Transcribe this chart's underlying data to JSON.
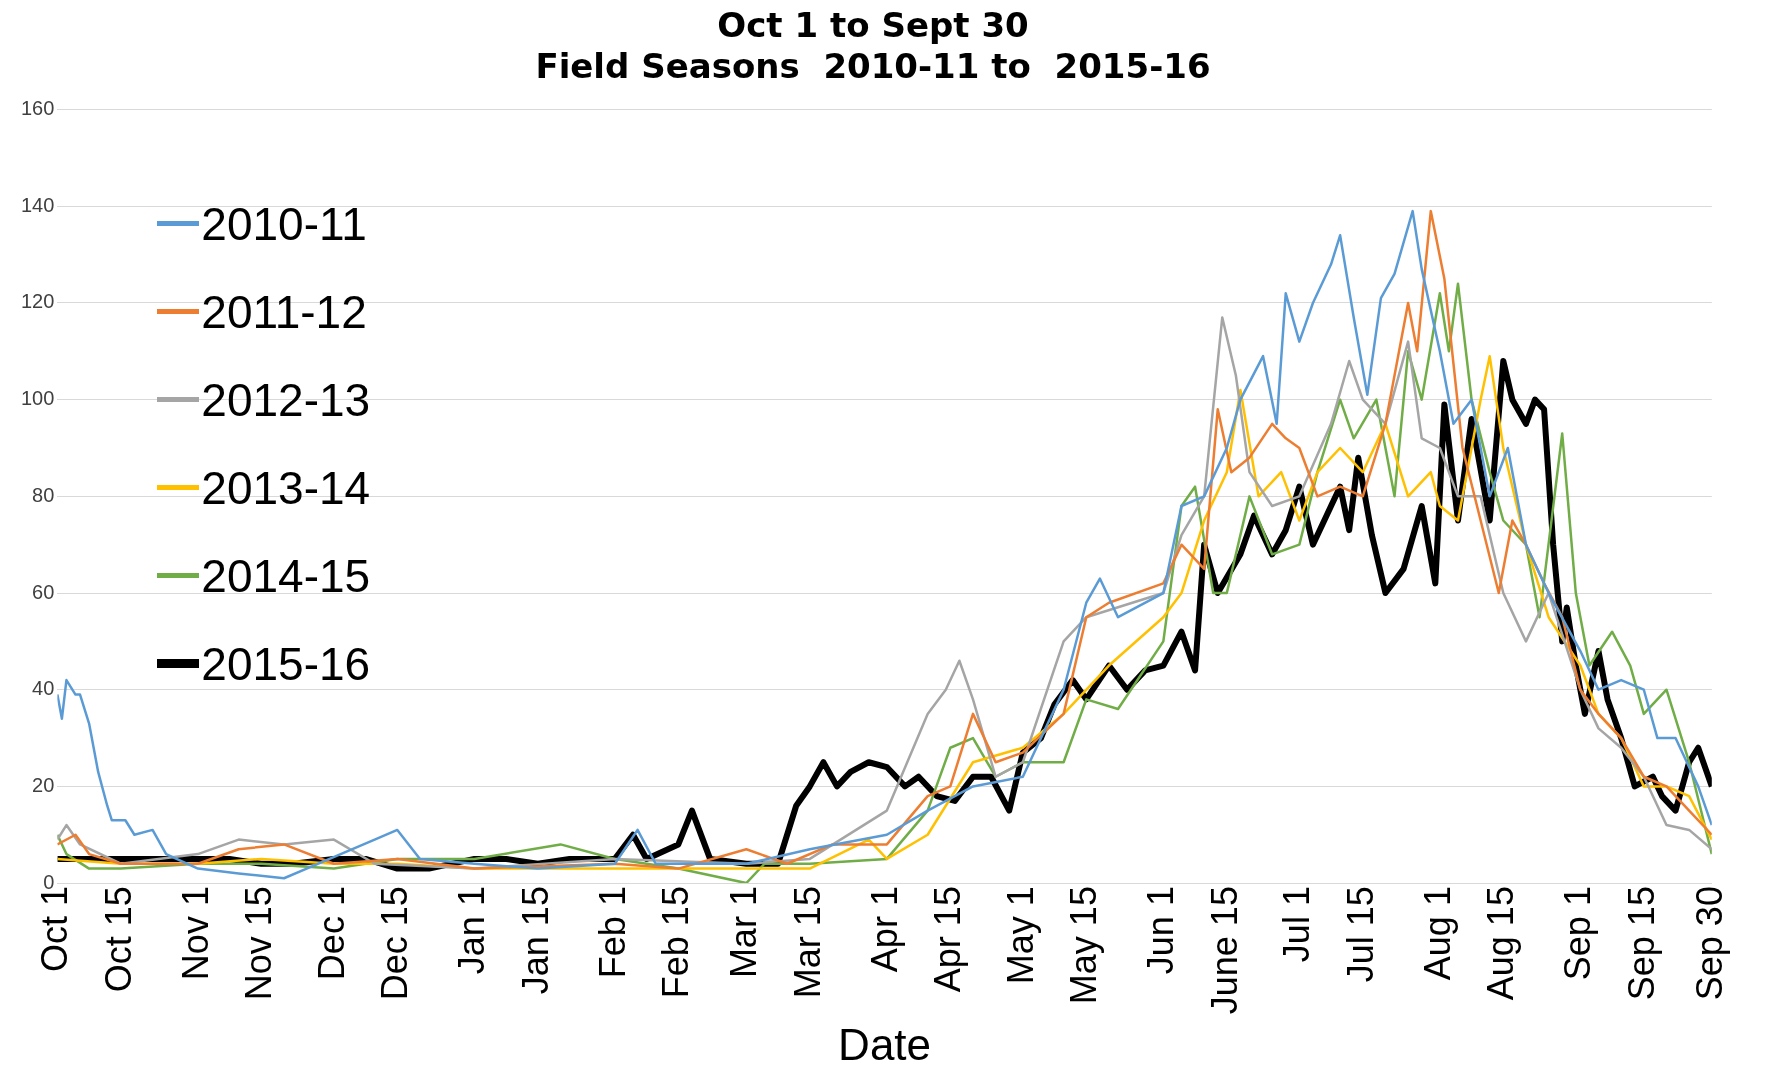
{
  "chart_data": {
    "type": "line",
    "title": "Oct 1 to Sept 30",
    "subtitle": "Field Seasons  2010-11 to  2015-16",
    "xlabel": "Date",
    "xlim": [
      "2015-10-01",
      "2016-09-30"
    ],
    "xticks": [
      {
        "value": "2015-10-01",
        "label": "Oct 1"
      },
      {
        "value": "2015-10-15",
        "label": "Oct 15"
      },
      {
        "value": "2015-11-01",
        "label": "Nov 1"
      },
      {
        "value": "2015-11-15",
        "label": "Nov 15"
      },
      {
        "value": "2015-12-01",
        "label": "Dec 1"
      },
      {
        "value": "2015-12-15",
        "label": "Dec 15"
      },
      {
        "value": "2016-01-01",
        "label": "Jan 1"
      },
      {
        "value": "2016-01-15",
        "label": "Jan 15"
      },
      {
        "value": "2016-02-01",
        "label": "Feb 1"
      },
      {
        "value": "2016-02-15",
        "label": "Feb 15"
      },
      {
        "value": "2016-03-01",
        "label": "Mar 1"
      },
      {
        "value": "2016-03-15",
        "label": "Mar 15"
      },
      {
        "value": "2016-04-01",
        "label": "Apr 1"
      },
      {
        "value": "2016-04-15",
        "label": "Apr 15"
      },
      {
        "value": "2016-05-01",
        "label": "May 1"
      },
      {
        "value": "2016-05-15",
        "label": "May 15"
      },
      {
        "value": "2016-06-01",
        "label": "Jun 1"
      },
      {
        "value": "2016-06-15",
        "label": "June 15"
      },
      {
        "value": "2016-07-01",
        "label": "Jul 1"
      },
      {
        "value": "2016-07-15",
        "label": "Jul 15"
      },
      {
        "value": "2016-08-01",
        "label": "Aug 1"
      },
      {
        "value": "2016-08-15",
        "label": "Aug 15"
      },
      {
        "value": "2016-09-01",
        "label": "Sep 1"
      },
      {
        "value": "2016-09-15",
        "label": "Sep 15"
      },
      {
        "value": "2016-09-30",
        "label": "Sep 30"
      }
    ],
    "ylim": [
      0,
      160
    ],
    "yticks": [
      0,
      20,
      40,
      60,
      80,
      100,
      120,
      140,
      160
    ],
    "grid": "y",
    "legend": "top left",
    "marker": "none",
    "line_style": "solid",
    "series": [
      {
        "name": "2010-11",
        "color": "#5b9bd5",
        "x": [
          "2015-10-01",
          "2015-10-02",
          "2015-10-03",
          "2015-10-05",
          "2015-10-06",
          "2015-10-08",
          "2015-10-10",
          "2015-10-12",
          "2015-10-13",
          "2015-10-16",
          "2015-10-18",
          "2015-10-22",
          "2015-10-25",
          "2015-11-01",
          "2015-11-10",
          "2015-11-20",
          "2015-11-25",
          "2015-12-10",
          "2015-12-15",
          "2015-12-20",
          "2016-01-01",
          "2016-01-15",
          "2016-02-01",
          "2016-02-06",
          "2016-02-10",
          "2016-03-01",
          "2016-03-15",
          "2016-04-01",
          "2016-04-10",
          "2016-04-20",
          "2016-05-01",
          "2016-05-10",
          "2016-05-15",
          "2016-05-18",
          "2016-05-22",
          "2016-06-01",
          "2016-06-05",
          "2016-06-10",
          "2016-06-15",
          "2016-06-18",
          "2016-06-23",
          "2016-06-26",
          "2016-06-28",
          "2016-07-01",
          "2016-07-04",
          "2016-07-08",
          "2016-07-10",
          "2016-07-13",
          "2016-07-16",
          "2016-07-19",
          "2016-07-22",
          "2016-07-26",
          "2016-07-28",
          "2016-08-01",
          "2016-08-04",
          "2016-08-08",
          "2016-08-12",
          "2016-08-16",
          "2016-08-20",
          "2016-08-25",
          "2016-09-01",
          "2016-09-05",
          "2016-09-10",
          "2016-09-15",
          "2016-09-18",
          "2016-09-22",
          "2016-09-27",
          "2016-09-30"
        ],
        "values": [
          39,
          34,
          42,
          39,
          39,
          33,
          23,
          16,
          13,
          13,
          10,
          11,
          6,
          3,
          2,
          1,
          3,
          9,
          11,
          5,
          4,
          3,
          4,
          11,
          4,
          4,
          7,
          10,
          15,
          20,
          22,
          40,
          58,
          63,
          55,
          60,
          78,
          80,
          90,
          100,
          109,
          95,
          122,
          112,
          120,
          128,
          134,
          117,
          101,
          121,
          126,
          139,
          127,
          110,
          95,
          100,
          80,
          90,
          70,
          60,
          48,
          40,
          42,
          40,
          30,
          30,
          20,
          12
        ]
      },
      {
        "name": "2011-12",
        "color": "#ed7d31",
        "x": [
          "2015-10-01",
          "2015-10-05",
          "2015-10-08",
          "2015-10-15",
          "2015-11-01",
          "2015-11-10",
          "2015-11-20",
          "2015-12-01",
          "2015-12-15",
          "2016-01-01",
          "2016-02-01",
          "2016-02-15",
          "2016-03-01",
          "2016-03-10",
          "2016-03-20",
          "2016-04-01",
          "2016-04-10",
          "2016-04-15",
          "2016-04-20",
          "2016-04-25",
          "2016-05-01",
          "2016-05-10",
          "2016-05-15",
          "2016-05-20",
          "2016-06-01",
          "2016-06-05",
          "2016-06-10",
          "2016-06-13",
          "2016-06-16",
          "2016-06-20",
          "2016-06-25",
          "2016-06-28",
          "2016-07-01",
          "2016-07-05",
          "2016-07-10",
          "2016-07-15",
          "2016-07-20",
          "2016-07-25",
          "2016-07-27",
          "2016-07-30",
          "2016-08-02",
          "2016-08-06",
          "2016-08-10",
          "2016-08-14",
          "2016-08-17",
          "2016-08-20",
          "2016-08-24",
          "2016-08-28",
          "2016-09-01",
          "2016-09-05",
          "2016-09-10",
          "2016-09-15",
          "2016-09-20",
          "2016-09-25",
          "2016-09-30"
        ],
        "values": [
          8,
          10,
          6,
          4,
          4,
          7,
          8,
          4,
          5,
          3,
          4,
          3,
          7,
          4,
          8,
          8,
          18,
          20,
          35,
          25,
          27,
          35,
          55,
          58,
          62,
          70,
          65,
          98,
          85,
          88,
          95,
          92,
          90,
          80,
          82,
          80,
          95,
          120,
          110,
          139,
          125,
          90,
          75,
          60,
          75,
          70,
          62,
          55,
          40,
          35,
          30,
          22,
          20,
          15,
          10
        ]
      },
      {
        "name": "2012-13",
        "color": "#a5a5a5",
        "x": [
          "2015-10-01",
          "2015-10-03",
          "2015-10-06",
          "2015-10-15",
          "2015-11-01",
          "2015-11-10",
          "2015-11-20",
          "2015-12-01",
          "2015-12-10",
          "2016-01-01",
          "2016-02-01",
          "2016-03-01",
          "2016-03-15",
          "2016-04-01",
          "2016-04-10",
          "2016-04-14",
          "2016-04-17",
          "2016-04-20",
          "2016-04-25",
          "2016-05-01",
          "2016-05-10",
          "2016-05-15",
          "2016-06-01",
          "2016-06-05",
          "2016-06-10",
          "2016-06-14",
          "2016-06-17",
          "2016-06-20",
          "2016-06-25",
          "2016-07-01",
          "2016-07-08",
          "2016-07-12",
          "2016-07-15",
          "2016-07-20",
          "2016-07-25",
          "2016-07-28",
          "2016-08-01",
          "2016-08-05",
          "2016-08-10",
          "2016-08-15",
          "2016-08-20",
          "2016-08-25",
          "2016-09-01",
          "2016-09-05",
          "2016-09-10",
          "2016-09-15",
          "2016-09-20",
          "2016-09-25",
          "2016-09-30"
        ],
        "values": [
          9,
          12,
          8,
          4,
          6,
          9,
          8,
          9,
          4,
          3,
          5,
          4,
          5,
          15,
          35,
          40,
          46,
          38,
          22,
          25,
          50,
          55,
          60,
          72,
          80,
          117,
          105,
          85,
          78,
          80,
          95,
          108,
          100,
          95,
          112,
          92,
          90,
          80,
          80,
          60,
          50,
          60,
          40,
          32,
          28,
          22,
          12,
          11,
          7
        ]
      },
      {
        "name": "2013-14",
        "color": "#ffc000",
        "x": [
          "2015-10-01",
          "2015-10-15",
          "2015-11-01",
          "2015-11-15",
          "2015-12-01",
          "2015-12-15",
          "2016-01-01",
          "2016-02-01",
          "2016-03-01",
          "2016-03-15",
          "2016-03-28",
          "2016-04-01",
          "2016-04-10",
          "2016-04-20",
          "2016-05-01",
          "2016-05-10",
          "2016-05-20",
          "2016-06-01",
          "2016-06-05",
          "2016-06-10",
          "2016-06-15",
          "2016-06-18",
          "2016-06-22",
          "2016-06-27",
          "2016-07-01",
          "2016-07-05",
          "2016-07-10",
          "2016-07-15",
          "2016-07-20",
          "2016-07-25",
          "2016-07-30",
          "2016-08-01",
          "2016-08-05",
          "2016-08-10",
          "2016-08-12",
          "2016-08-15",
          "2016-08-20",
          "2016-08-25",
          "2016-09-01",
          "2016-09-05",
          "2016-09-10",
          "2016-09-15",
          "2016-09-20",
          "2016-09-25",
          "2016-09-30"
        ],
        "values": [
          5,
          4,
          4,
          5,
          4,
          4,
          3,
          3,
          3,
          3,
          9,
          5,
          10,
          25,
          28,
          35,
          45,
          55,
          60,
          75,
          85,
          102,
          80,
          85,
          75,
          85,
          90,
          85,
          95,
          80,
          85,
          78,
          75,
          100,
          109,
          90,
          70,
          55,
          45,
          35,
          30,
          20,
          20,
          18,
          9
        ]
      },
      {
        "name": "2014-15",
        "color": "#70ad47",
        "x": [
          "2015-10-01",
          "2015-10-03",
          "2015-10-08",
          "2015-10-15",
          "2015-11-01",
          "2015-11-15",
          "2015-12-01",
          "2015-12-15",
          "2016-01-01",
          "2016-01-20",
          "2016-02-01",
          "2016-02-15",
          "2016-03-01",
          "2016-03-05",
          "2016-03-15",
          "2016-04-01",
          "2016-04-10",
          "2016-04-15",
          "2016-04-20",
          "2016-04-25",
          "2016-05-01",
          "2016-05-10",
          "2016-05-15",
          "2016-05-22",
          "2016-06-01",
          "2016-06-05",
          "2016-06-08",
          "2016-06-12",
          "2016-06-15",
          "2016-06-20",
          "2016-06-25",
          "2016-07-01",
          "2016-07-05",
          "2016-07-10",
          "2016-07-13",
          "2016-07-18",
          "2016-07-22",
          "2016-07-25",
          "2016-07-28",
          "2016-08-01",
          "2016-08-03",
          "2016-08-05",
          "2016-08-08",
          "2016-08-12",
          "2016-08-15",
          "2016-08-20",
          "2016-08-23",
          "2016-08-28",
          "2016-08-31",
          "2016-09-03",
          "2016-09-08",
          "2016-09-12",
          "2016-09-15",
          "2016-09-20",
          "2016-09-25",
          "2016-09-30"
        ],
        "values": [
          10,
          6,
          3,
          3,
          4,
          4,
          3,
          5,
          5,
          8,
          5,
          3,
          0,
          4,
          4,
          5,
          15,
          28,
          30,
          22,
          25,
          25,
          38,
          36,
          50,
          78,
          82,
          60,
          60,
          80,
          68,
          70,
          85,
          100,
          92,
          100,
          80,
          110,
          100,
          122,
          110,
          124,
          100,
          85,
          75,
          70,
          55,
          93,
          60,
          45,
          52,
          45,
          35,
          40,
          25,
          6
        ]
      },
      {
        "name": "2015-16",
        "color": "#000000",
        "x": [
          "2015-10-01",
          "2015-10-08",
          "2015-10-15",
          "2015-10-22",
          "2015-11-01",
          "2015-11-08",
          "2015-11-15",
          "2015-11-22",
          "2015-12-01",
          "2015-12-08",
          "2015-12-15",
          "2015-12-22",
          "2016-01-01",
          "2016-01-08",
          "2016-01-15",
          "2016-01-22",
          "2016-02-01",
          "2016-02-05",
          "2016-02-08",
          "2016-02-15",
          "2016-02-18",
          "2016-02-22",
          "2016-03-01",
          "2016-03-08",
          "2016-03-12",
          "2016-03-15",
          "2016-03-18",
          "2016-03-21",
          "2016-03-24",
          "2016-03-28",
          "2016-04-01",
          "2016-04-05",
          "2016-04-08",
          "2016-04-12",
          "2016-04-16",
          "2016-04-20",
          "2016-04-24",
          "2016-04-28",
          "2016-05-01",
          "2016-05-05",
          "2016-05-08",
          "2016-05-12",
          "2016-05-15",
          "2016-05-20",
          "2016-05-24",
          "2016-05-28",
          "2016-06-01",
          "2016-06-05",
          "2016-06-08",
          "2016-06-10",
          "2016-06-13",
          "2016-06-18",
          "2016-06-21",
          "2016-06-25",
          "2016-06-28",
          "2016-07-01",
          "2016-07-04",
          "2016-07-08",
          "2016-07-10",
          "2016-07-12",
          "2016-07-14",
          "2016-07-17",
          "2016-07-20",
          "2016-07-24",
          "2016-07-28",
          "2016-07-31",
          "2016-08-02",
          "2016-08-05",
          "2016-08-08",
          "2016-08-12",
          "2016-08-15",
          "2016-08-17",
          "2016-08-20",
          "2016-08-22",
          "2016-08-24",
          "2016-08-26",
          "2016-08-28",
          "2016-08-29",
          "2016-08-31",
          "2016-09-02",
          "2016-09-05",
          "2016-09-07",
          "2016-09-10",
          "2016-09-13",
          "2016-09-17",
          "2016-09-19",
          "2016-09-22",
          "2016-09-25",
          "2016-09-27",
          "2016-09-30"
        ],
        "values": [
          5,
          5,
          5,
          5,
          5,
          5,
          4,
          4,
          5,
          5,
          3,
          3,
          5,
          5,
          4,
          5,
          5,
          10,
          5,
          8,
          15,
          5,
          4,
          4,
          16,
          20,
          25,
          20,
          23,
          25,
          24,
          20,
          22,
          18,
          17,
          22,
          22,
          15,
          27,
          30,
          37,
          42,
          38,
          45,
          40,
          44,
          45,
          52,
          44,
          70,
          60,
          68,
          76,
          68,
          73,
          82,
          70,
          78,
          82,
          73,
          88,
          72,
          60,
          65,
          78,
          62,
          99,
          75,
          96,
          75,
          108,
          100,
          95,
          100,
          98,
          70,
          50,
          57,
          45,
          35,
          48,
          38,
          30,
          20,
          22,
          18,
          15,
          25,
          28,
          20
        ]
      }
    ]
  }
}
